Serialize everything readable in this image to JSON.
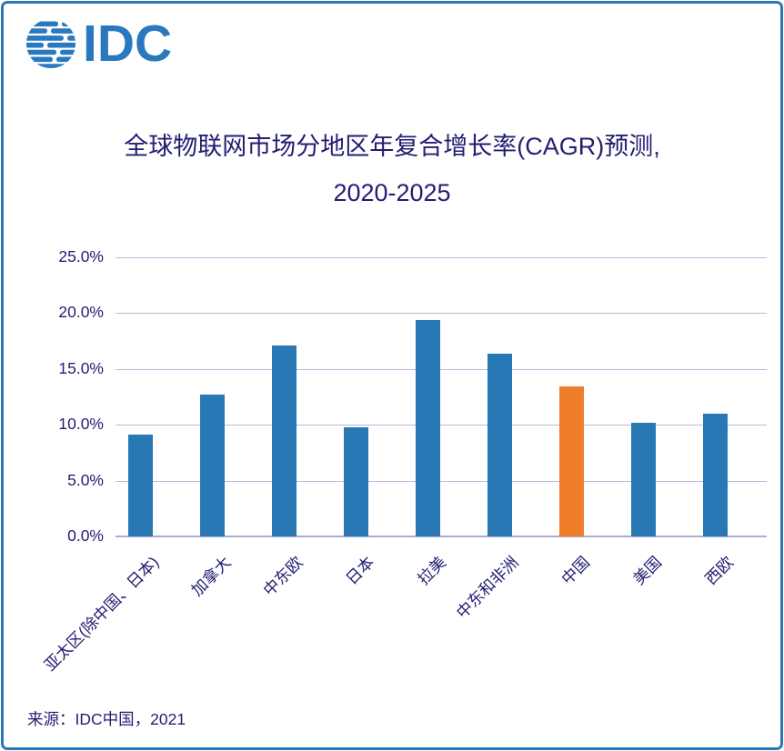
{
  "logo": {
    "text": "IDC"
  },
  "title": {
    "line1": "全球物联网市场分地区年复合增长率(CAGR)预测,",
    "line2": "2020-2025"
  },
  "source": {
    "text": "来源：IDC中国，2021"
  },
  "colors": {
    "text_navy": "#221E72",
    "grid": "#B9B7DC",
    "axis": "#AFAECE",
    "frame_border": "#2979B2",
    "logo_blue": "#2A79BE",
    "bar_blue": "#2878B6",
    "bar_orange": "#F07D2A"
  },
  "chart_data": {
    "type": "bar",
    "title": "全球物联网市场分地区年复合增长率(CAGR)预测, 2020-2025",
    "categories": [
      "亚太区(除中国、日本)",
      "加拿大",
      "中东欧",
      "日本",
      "拉美",
      "中东和非洲",
      "中国",
      "美国",
      "西欧"
    ],
    "values": [
      9.1,
      12.7,
      17.1,
      9.8,
      19.4,
      16.4,
      13.4,
      10.2,
      11.0
    ],
    "unit": "%",
    "highlight_index": 6,
    "highlight_category": "中国",
    "xlabel": "",
    "ylabel": "",
    "ylim": [
      0,
      25
    ],
    "ytick_step": 5,
    "ytick_labels": [
      "0.0%",
      "5.0%",
      "10.0%",
      "15.0%",
      "20.0%",
      "25.0%"
    ],
    "grid": true,
    "legend": false,
    "bar_color": "#2878B6",
    "highlight_color": "#F07D2A",
    "source": "来源：IDC中国，2021"
  }
}
